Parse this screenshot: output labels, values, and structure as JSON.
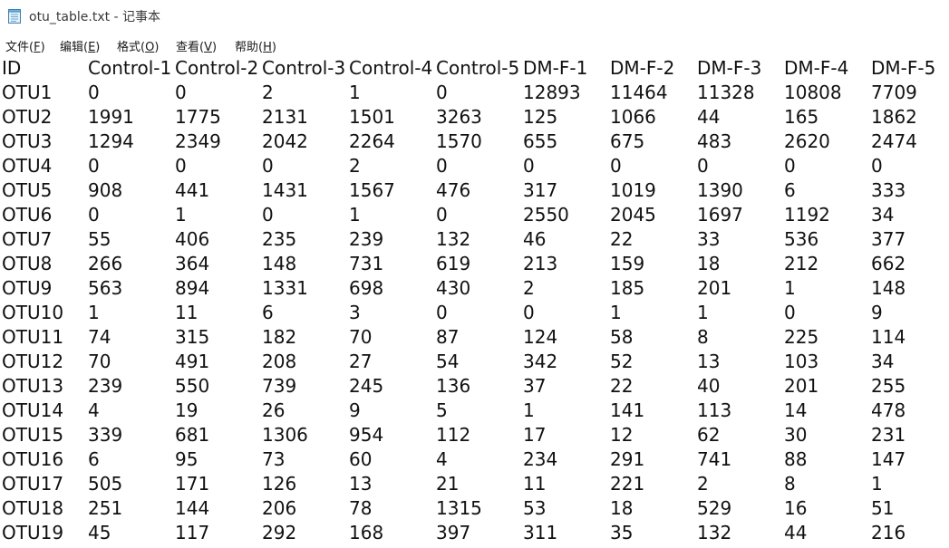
{
  "window": {
    "title": "otu_table.txt - 记事本",
    "icon": "notepad-icon"
  },
  "menu": [
    {
      "label": "文件(",
      "accel": "F",
      "close": ")"
    },
    {
      "label": "编辑(",
      "accel": "E",
      "close": ")"
    },
    {
      "label": "格式(",
      "accel": "O",
      "close": ")"
    },
    {
      "label": "查看(",
      "accel": "V",
      "close": ")"
    },
    {
      "label": "帮助(",
      "accel": "H",
      "close": ")"
    }
  ],
  "table": {
    "header": [
      "ID",
      "Control-1",
      "Control-2",
      "Control-3",
      "Control-4",
      "Control-5",
      "DM-F-1",
      "DM-F-2",
      "DM-F-3",
      "DM-F-4",
      "DM-F-5"
    ],
    "rows": [
      [
        "OTU1",
        "0",
        "0",
        "2",
        "1",
        "0",
        "12893",
        "11464",
        "11328",
        "10808",
        "7709"
      ],
      [
        "OTU2",
        "1991",
        "1775",
        "2131",
        "1501",
        "3263",
        "125",
        "1066",
        "44",
        "165",
        "1862"
      ],
      [
        "OTU3",
        "1294",
        "2349",
        "2042",
        "2264",
        "1570",
        "655",
        "675",
        "483",
        "2620",
        "2474"
      ],
      [
        "OTU4",
        "0",
        "0",
        "0",
        "2",
        "0",
        "0",
        "0",
        "0",
        "0",
        "0"
      ],
      [
        "OTU5",
        "908",
        "441",
        "1431",
        "1567",
        "476",
        "317",
        "1019",
        "1390",
        "6",
        "333"
      ],
      [
        "OTU6",
        "0",
        "1",
        "0",
        "1",
        "0",
        "2550",
        "2045",
        "1697",
        "1192",
        "34"
      ],
      [
        "OTU7",
        "55",
        "406",
        "235",
        "239",
        "132",
        "46",
        "22",
        "33",
        "536",
        "377"
      ],
      [
        "OTU8",
        "266",
        "364",
        "148",
        "731",
        "619",
        "213",
        "159",
        "18",
        "212",
        "662"
      ],
      [
        "OTU9",
        "563",
        "894",
        "1331",
        "698",
        "430",
        "2",
        "185",
        "201",
        "1",
        "148"
      ],
      [
        "OTU10",
        "1",
        "11",
        "6",
        "3",
        "0",
        "0",
        "1",
        "1",
        "0",
        "9"
      ],
      [
        "OTU11",
        "74",
        "315",
        "182",
        "70",
        "87",
        "124",
        "58",
        "8",
        "225",
        "114"
      ],
      [
        "OTU12",
        "70",
        "491",
        "208",
        "27",
        "54",
        "342",
        "52",
        "13",
        "103",
        "34"
      ],
      [
        "OTU13",
        "239",
        "550",
        "739",
        "245",
        "136",
        "37",
        "22",
        "40",
        "201",
        "255"
      ],
      [
        "OTU14",
        "4",
        "19",
        "26",
        "9",
        "5",
        "1",
        "141",
        "113",
        "14",
        "478"
      ],
      [
        "OTU15",
        "339",
        "681",
        "1306",
        "954",
        "112",
        "17",
        "12",
        "62",
        "30",
        "231"
      ],
      [
        "OTU16",
        "6",
        "95",
        "73",
        "60",
        "4",
        "234",
        "291",
        "741",
        "88",
        "147"
      ],
      [
        "OTU17",
        "505",
        "171",
        "126",
        "13",
        "21",
        "11",
        "221",
        "2",
        "8",
        "1"
      ],
      [
        "OTU18",
        "251",
        "144",
        "206",
        "78",
        "1315",
        "53",
        "18",
        "529",
        "16",
        "51"
      ],
      [
        "OTU19",
        "45",
        "117",
        "292",
        "168",
        "397",
        "311",
        "35",
        "132",
        "44",
        "216"
      ]
    ]
  }
}
